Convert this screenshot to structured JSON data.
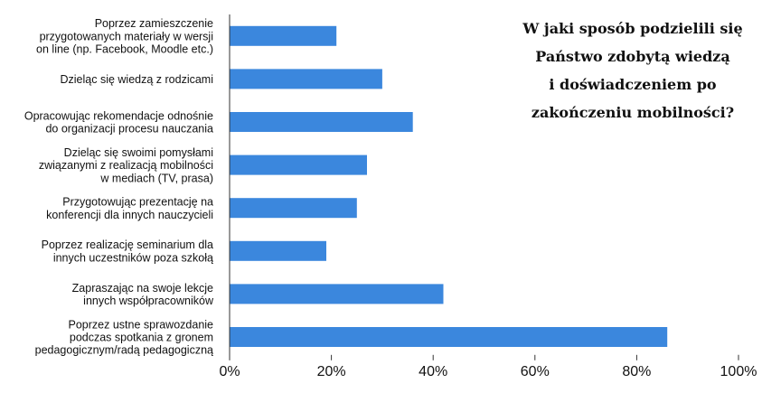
{
  "chart_data": {
    "type": "bar",
    "orientation": "horizontal",
    "title_lines": [
      "W jaki sposób podzielili się",
      "Państwo zdobytą wiedzą",
      "i doświadczeniem po",
      "zakończeniu mobilności?"
    ],
    "categories": [
      [
        "Poprzez zamieszczenie",
        "przygotowanych materiały w wersji",
        "on line (np. Facebook, Moodle etc.)"
      ],
      [
        "Dzieląc się wiedzą z rodzicami"
      ],
      [
        "Opracowując rekomendacje odnośnie",
        "do organizacji procesu nauczania"
      ],
      [
        "Dzieląc się swoimi pomysłami",
        "związanymi z realizacją mobilności",
        "w mediach (TV, prasa)"
      ],
      [
        "Przygotowując prezentację na",
        "konferencji dla innych nauczycieli"
      ],
      [
        "Poprzez realizację seminarium dla",
        "innych uczestników poza szkołą"
      ],
      [
        "Zapraszając na swoje lekcje",
        "innych współpracowników"
      ],
      [
        "Poprzez ustne sprawozdanie",
        "podczas spotkania z gronem",
        "pedagogicznym/radą pedagogiczną"
      ]
    ],
    "values": [
      21,
      30,
      36,
      27,
      25,
      19,
      42,
      86
    ],
    "xlim": [
      0,
      100
    ],
    "xticks": [
      0,
      20,
      40,
      60,
      80,
      100
    ],
    "xtick_labels": [
      "0%",
      "20%",
      "40%",
      "60%",
      "80%",
      "100%"
    ],
    "grid": false,
    "bar_color": "#3b87dd"
  }
}
